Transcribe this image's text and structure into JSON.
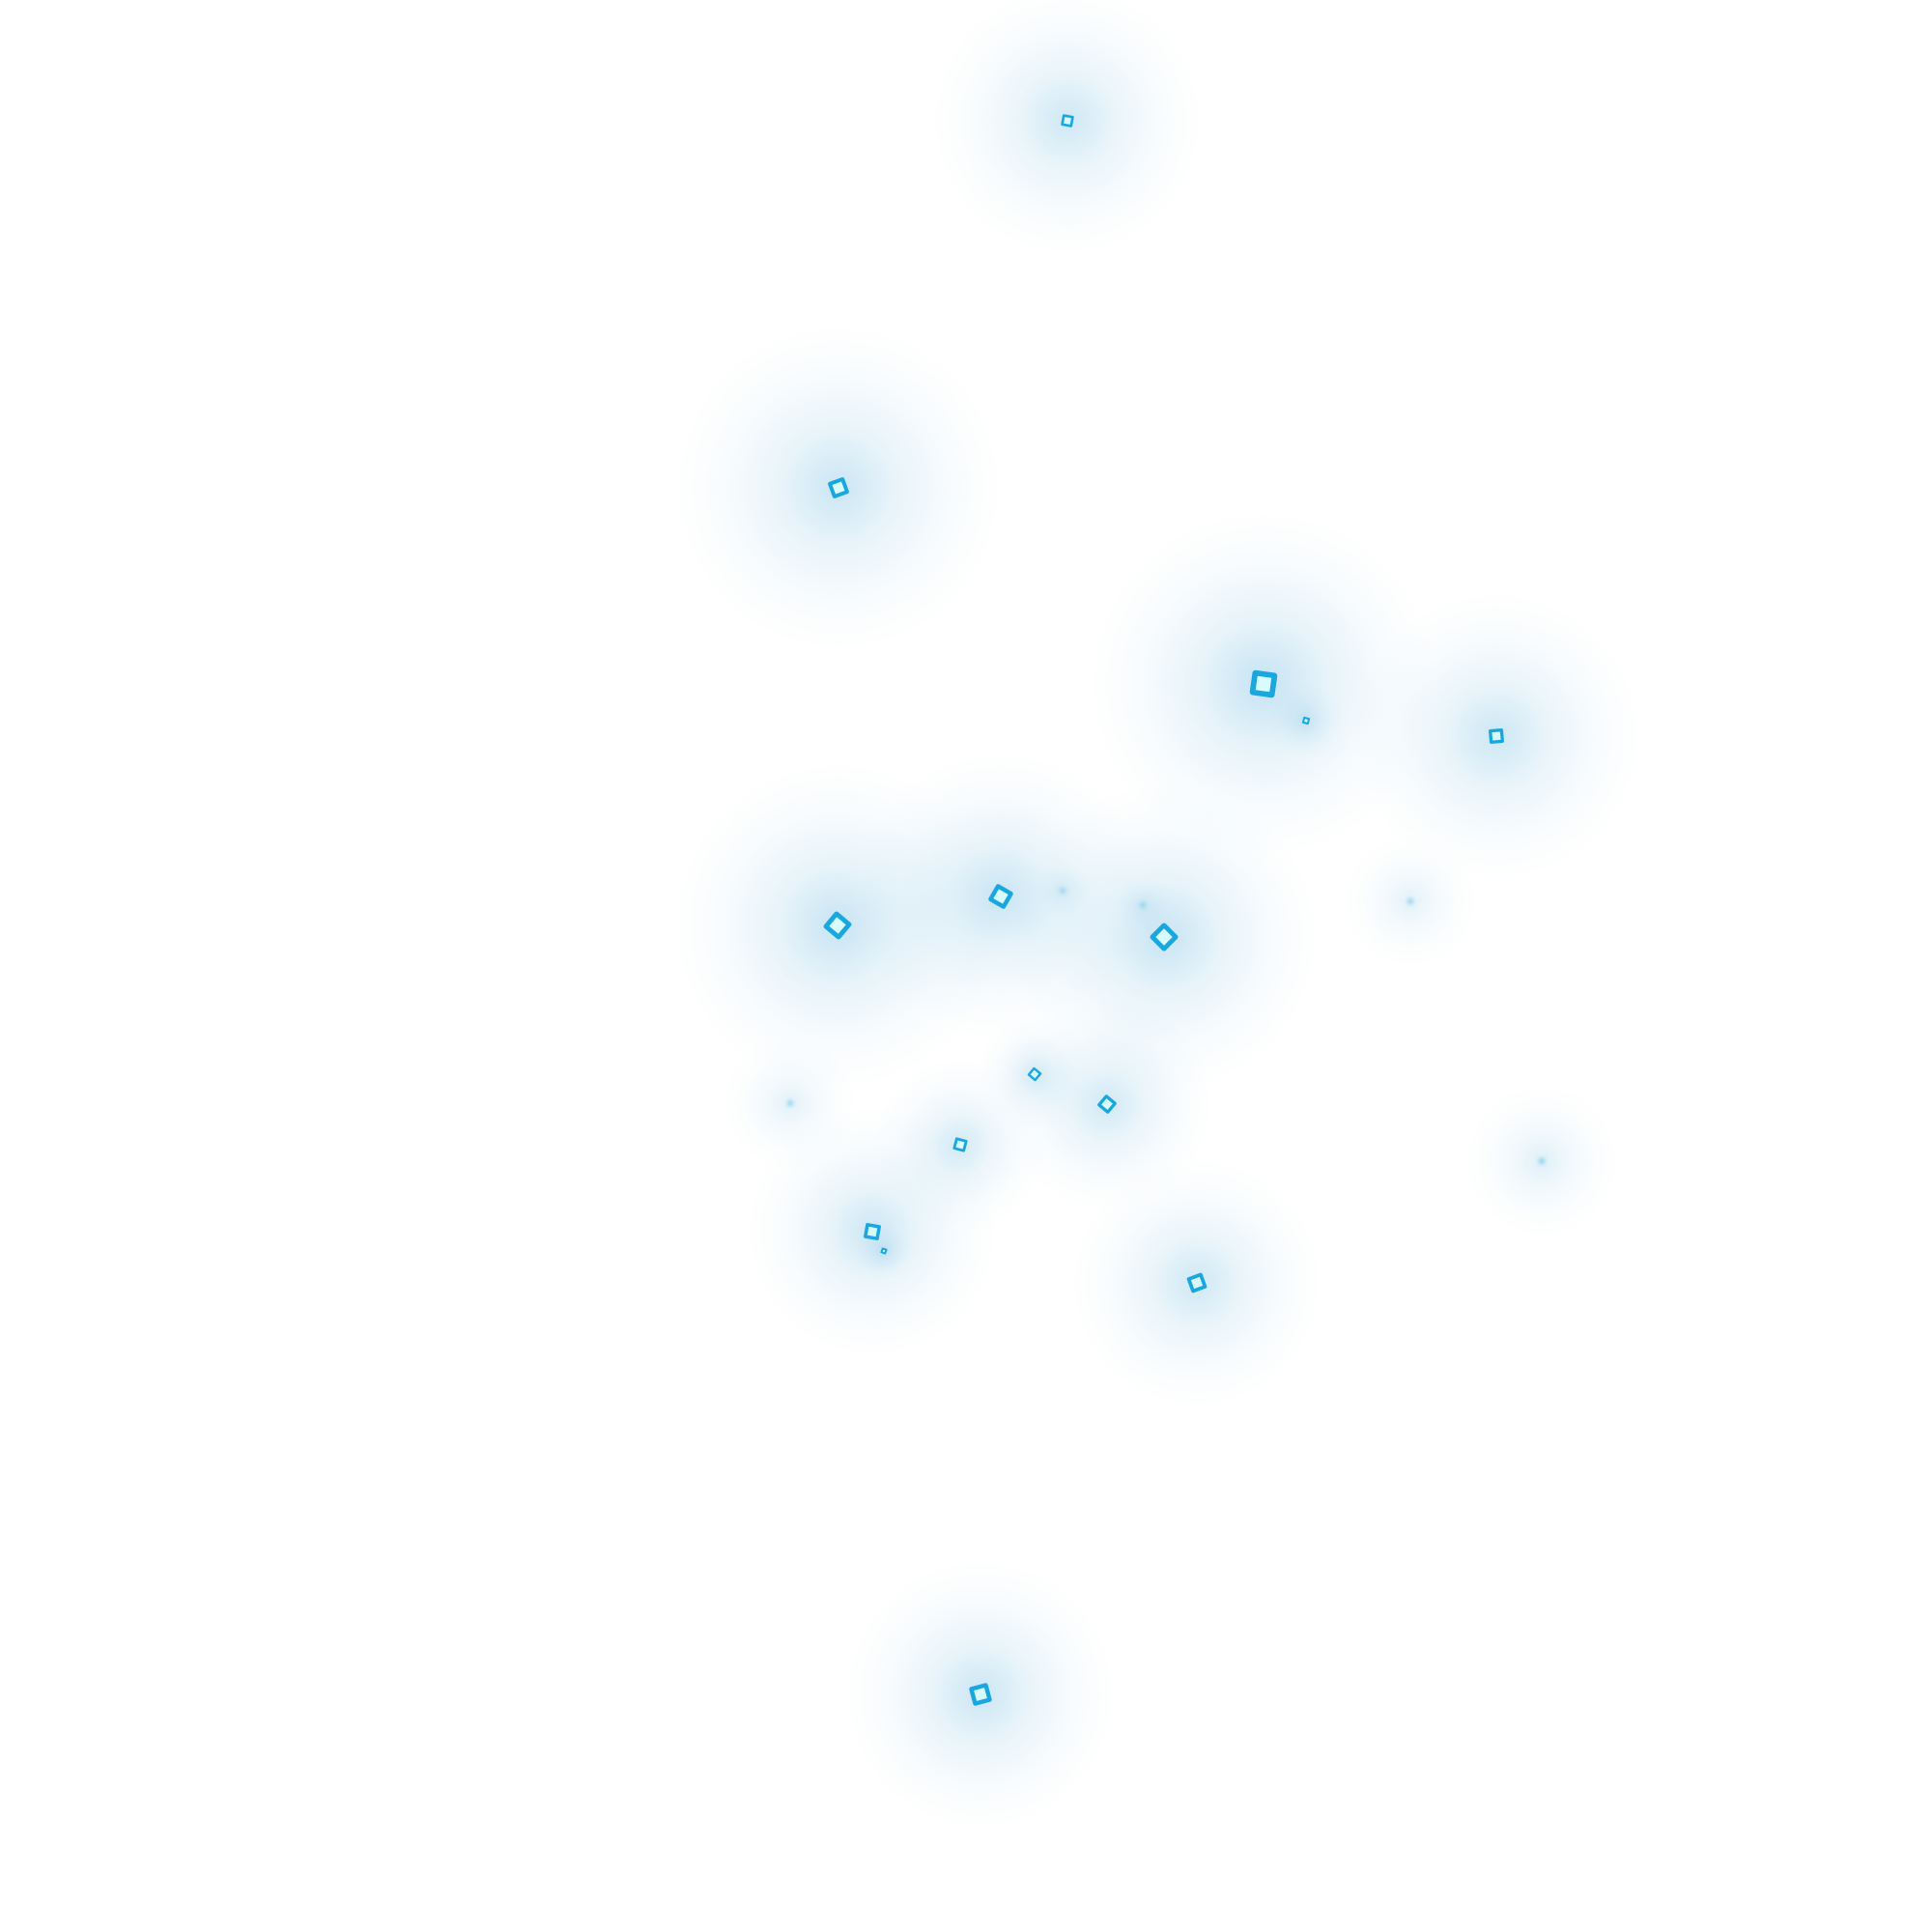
{
  "colors": {
    "background": "#ffffff",
    "glow": "#4aa8d8",
    "core_edge": "#1aa7e0",
    "core_fill": "#d8fbff"
  },
  "particles": [
    {
      "id": "p01",
      "intensity": 0.75,
      "shape": "square"
    },
    {
      "id": "p02",
      "intensity": 0.85,
      "shape": "square"
    },
    {
      "id": "p03",
      "intensity": 1.0,
      "shape": "square"
    },
    {
      "id": "p04",
      "intensity": 0.5,
      "shape": "square"
    },
    {
      "id": "p05",
      "intensity": 0.8,
      "shape": "square"
    },
    {
      "id": "p06",
      "intensity": 0.95,
      "shape": "square"
    },
    {
      "id": "p07",
      "intensity": 0.9,
      "shape": "square"
    },
    {
      "id": "p08",
      "intensity": 0.95,
      "shape": "square"
    },
    {
      "id": "p09",
      "intensity": 0.15,
      "shape": "dot"
    },
    {
      "id": "p10",
      "intensity": 0.15,
      "shape": "dot"
    },
    {
      "id": "p11",
      "intensity": 0.2,
      "shape": "dot"
    },
    {
      "id": "p12",
      "intensity": 0.55,
      "shape": "square"
    },
    {
      "id": "p13",
      "intensity": 0.7,
      "shape": "square"
    },
    {
      "id": "p14",
      "intensity": 0.65,
      "shape": "square"
    },
    {
      "id": "p15",
      "intensity": 0.2,
      "shape": "dot"
    },
    {
      "id": "p16",
      "intensity": 0.3,
      "shape": "dot"
    },
    {
      "id": "p17",
      "intensity": 0.8,
      "shape": "square"
    },
    {
      "id": "p18",
      "intensity": 0.4,
      "shape": "square"
    },
    {
      "id": "p19",
      "intensity": 0.75,
      "shape": "square"
    },
    {
      "id": "p20",
      "intensity": 0.85,
      "shape": "square"
    }
  ]
}
